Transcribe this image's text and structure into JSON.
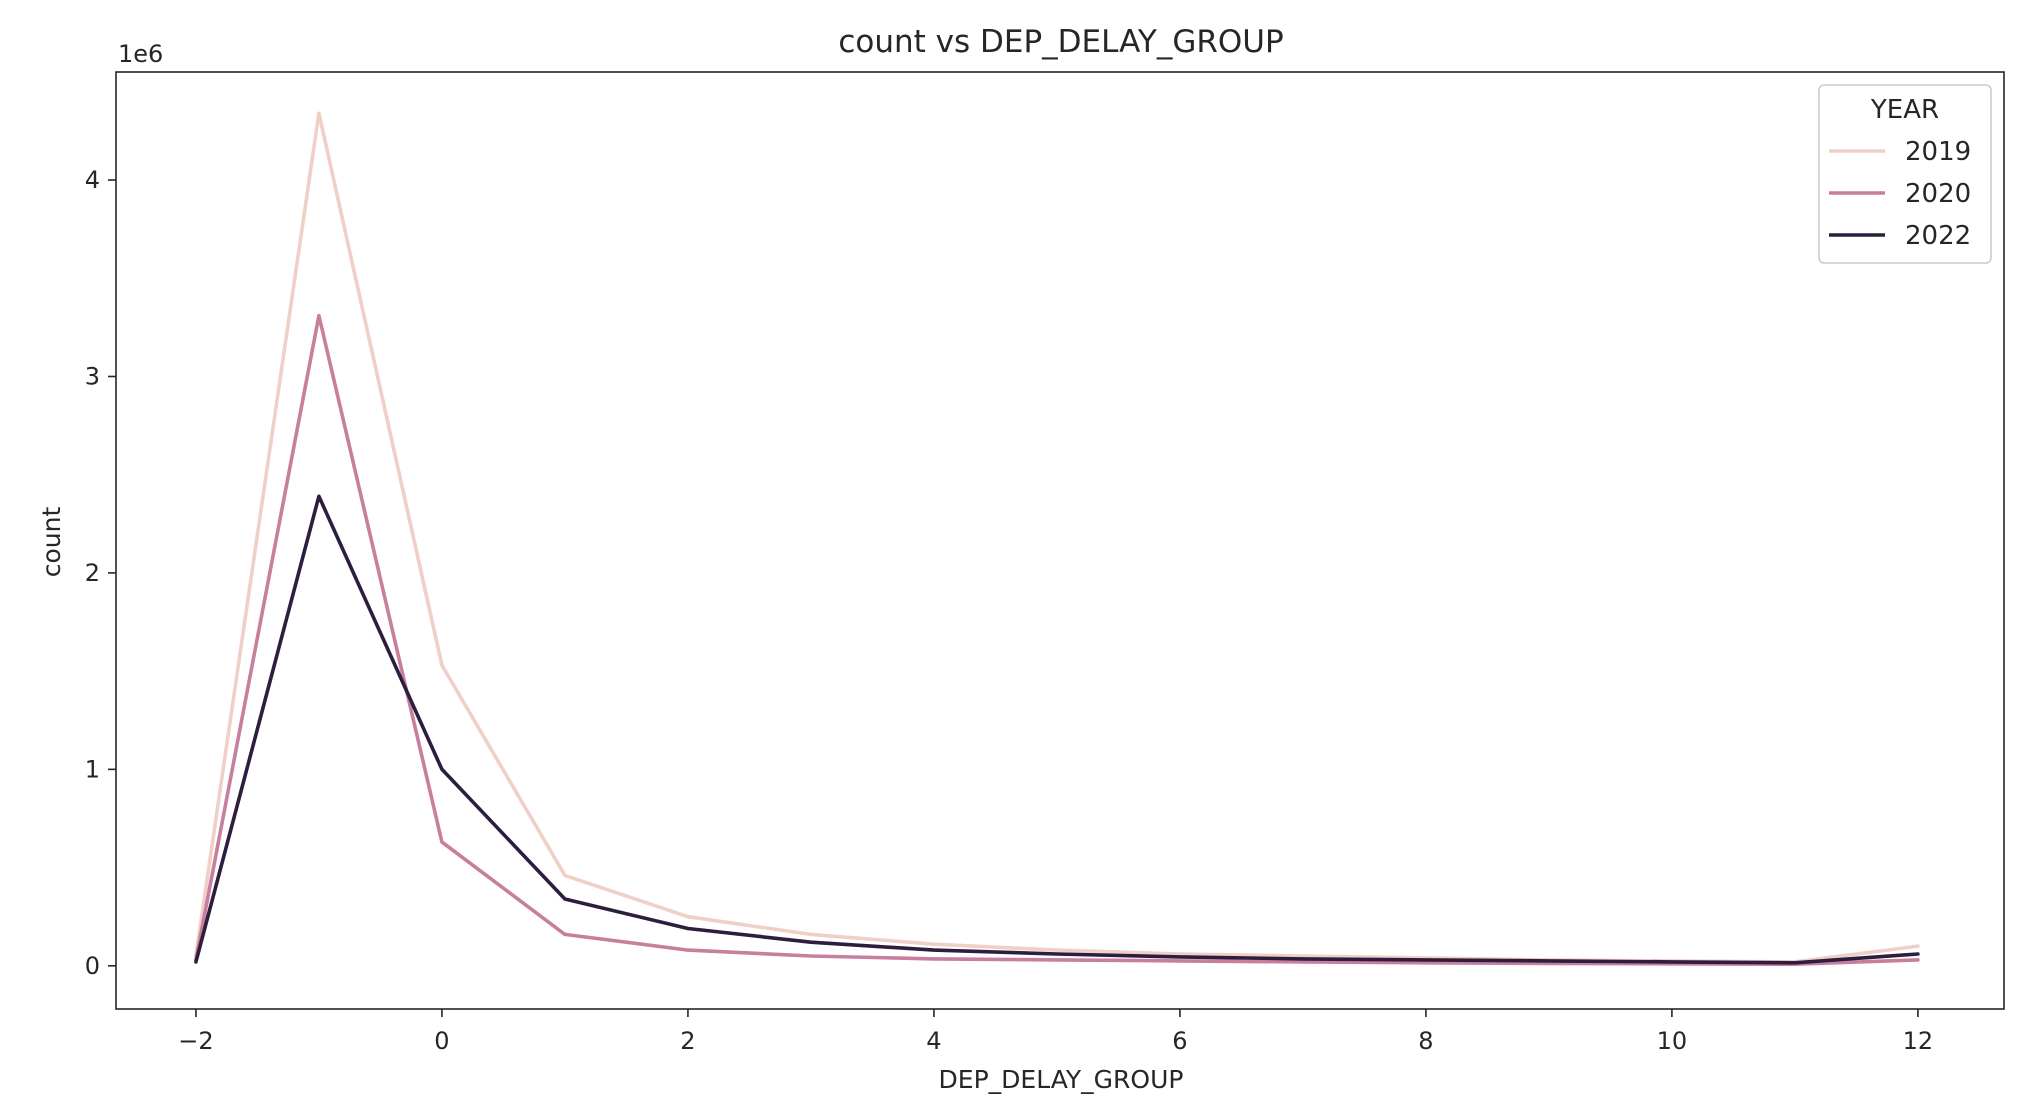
{
  "chart_data": {
    "type": "line",
    "title": "count vs DEP_DELAY_GROUP",
    "xlabel": "DEP_DELAY_GROUP",
    "ylabel": "count",
    "y_offset_label": "1e6",
    "xlim": [
      -2.65,
      12.7
    ],
    "ylim": [
      -0.22,
      4.55
    ],
    "x_ticks": [
      -2,
      0,
      2,
      4,
      6,
      8,
      10,
      12
    ],
    "x_tick_labels": [
      "−2",
      "0",
      "2",
      "4",
      "6",
      "8",
      "10",
      "12"
    ],
    "y_ticks": [
      0,
      1,
      2,
      3,
      4
    ],
    "y_tick_labels": [
      "0",
      "1",
      "2",
      "3",
      "4"
    ],
    "grid": false,
    "legend": {
      "title": "YEAR",
      "position": "top-right"
    },
    "x": [
      -2,
      -1,
      0,
      1,
      2,
      3,
      4,
      5,
      6,
      7,
      8,
      9,
      10,
      11,
      12
    ],
    "series": [
      {
        "name": "2019",
        "color": "#f0cfc7",
        "values": [
          0.05,
          4.34,
          1.53,
          0.46,
          0.25,
          0.16,
          0.11,
          0.08,
          0.06,
          0.05,
          0.04,
          0.03,
          0.025,
          0.02,
          0.1
        ]
      },
      {
        "name": "2020",
        "color": "#c87f9e",
        "values": [
          0.03,
          3.31,
          0.63,
          0.16,
          0.08,
          0.05,
          0.035,
          0.03,
          0.025,
          0.02,
          0.015,
          0.012,
          0.01,
          0.008,
          0.03
        ]
      },
      {
        "name": "2022",
        "color": "#2d1e3e",
        "values": [
          0.02,
          2.39,
          1.0,
          0.34,
          0.19,
          0.12,
          0.08,
          0.06,
          0.045,
          0.035,
          0.03,
          0.025,
          0.02,
          0.015,
          0.06
        ]
      }
    ]
  }
}
